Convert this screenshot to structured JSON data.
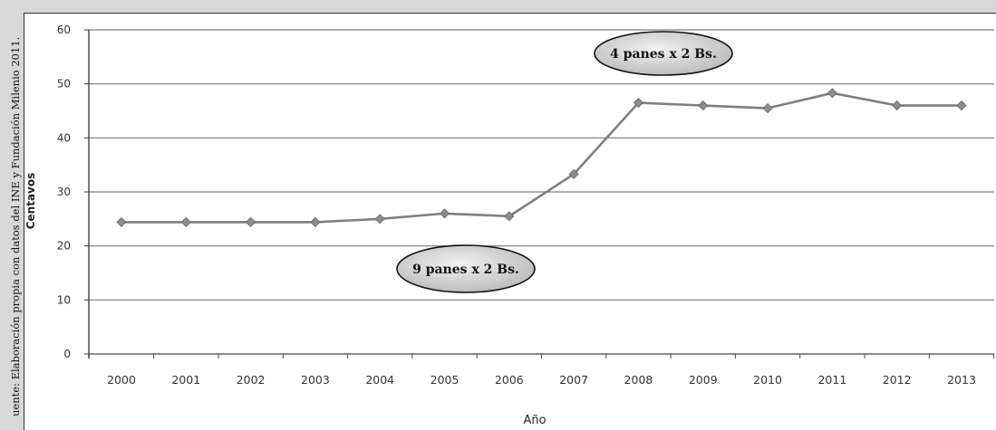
{
  "source_note": "uente: Elaboración propia con datos del INE y Fundación Milenio 2011.",
  "chart_data": {
    "type": "line",
    "title": "",
    "xlabel": "Año",
    "ylabel": "Centavos",
    "ylim": [
      0,
      60
    ],
    "yticks": [
      "0",
      "10",
      "20",
      "30",
      "40",
      "50",
      "60"
    ],
    "grid": true,
    "categories": [
      "2000",
      "2001",
      "2002",
      "2003",
      "2004",
      "2005",
      "2006",
      "2007",
      "2008",
      "2009",
      "2010",
      "2011",
      "2012",
      "2013"
    ],
    "series": [
      {
        "values": [
          24.4,
          24.4,
          24.4,
          24.4,
          25.0,
          26.0,
          25.5,
          33.3,
          46.5,
          46.0,
          45.5,
          48.3,
          46.0,
          46.0
        ]
      }
    ],
    "annotations": [
      {
        "text": "4 panes x 2 Bs.",
        "year": "2008"
      },
      {
        "text": "9 panes x 2 Bs.",
        "year": "2006"
      }
    ],
    "colors": {
      "line": "#7f7f7f",
      "marker": "#8c8c8c",
      "bubble": "#c9c9c9"
    }
  }
}
